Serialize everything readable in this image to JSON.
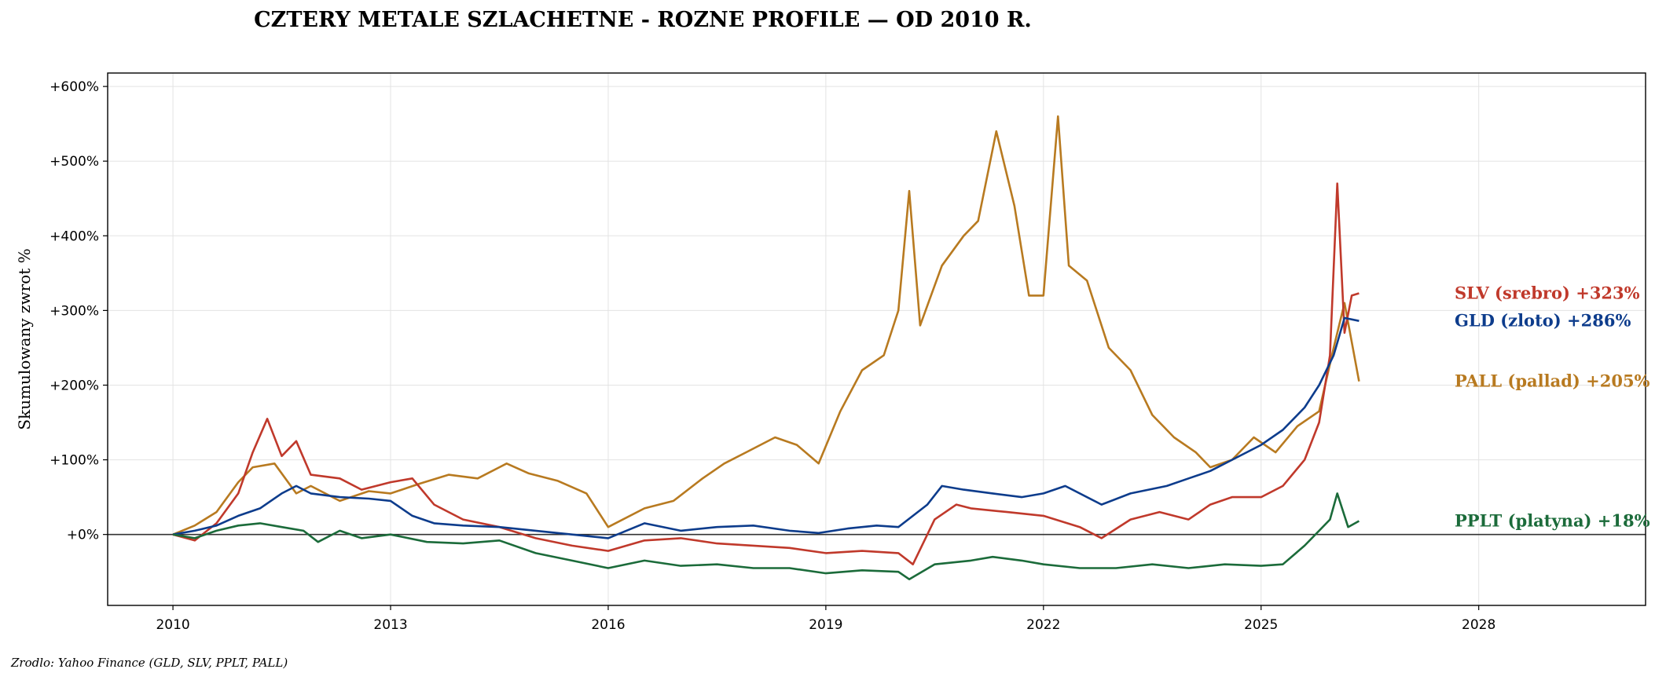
{
  "chart_data": {
    "type": "line",
    "title": "CZTERY METALE SZLACHETNE - ROZNE PROFILE — OD 2010 R.",
    "ylabel": "Skumulowany zwrot %",
    "xlabel": "",
    "source": "Zrodlo: Yahoo Finance (GLD, SLV, PPLT, PALL)",
    "xlim": [
      2009.1,
      2030.3
    ],
    "ylim": [
      -95,
      618
    ],
    "xticks": [
      2010,
      2013,
      2016,
      2019,
      2022,
      2025,
      2028
    ],
    "yticks": [
      0,
      100,
      200,
      300,
      400,
      500,
      600
    ],
    "ytick_labels": [
      "+0%",
      "+100%",
      "+200%",
      "+300%",
      "+400%",
      "+500%",
      "+600%"
    ],
    "xtick_labels": [
      "2010",
      "2013",
      "2016",
      "2019",
      "2022",
      "2025",
      "2028"
    ],
    "grid": true,
    "zero_line": true,
    "series": [
      {
        "key": "pall",
        "label": "PALL (pallad)  +205%",
        "color": "#b87a20",
        "x": [
          2010.0,
          2010.3,
          2010.6,
          2010.9,
          2011.1,
          2011.4,
          2011.7,
          2011.9,
          2012.3,
          2012.7,
          2013.0,
          2013.4,
          2013.8,
          2014.2,
          2014.6,
          2014.9,
          2015.3,
          2015.7,
          2016.0,
          2016.5,
          2016.9,
          2017.3,
          2017.6,
          2017.9,
          2018.3,
          2018.6,
          2018.9,
          2019.2,
          2019.5,
          2019.8,
          2020.0,
          2020.15,
          2020.3,
          2020.6,
          2020.9,
          2021.1,
          2021.35,
          2021.6,
          2021.8,
          2022.0,
          2022.2,
          2022.35,
          2022.6,
          2022.9,
          2023.2,
          2023.5,
          2023.8,
          2024.1,
          2024.3,
          2024.6,
          2024.9,
          2025.2,
          2025.5,
          2025.8,
          2026.0,
          2026.15,
          2026.35
        ],
        "y": [
          0,
          12,
          30,
          70,
          90,
          95,
          55,
          65,
          45,
          58,
          55,
          68,
          80,
          75,
          95,
          82,
          72,
          55,
          10,
          35,
          45,
          75,
          95,
          110,
          130,
          120,
          95,
          165,
          220,
          240,
          300,
          460,
          280,
          360,
          400,
          420,
          540,
          440,
          320,
          320,
          560,
          360,
          340,
          250,
          220,
          160,
          130,
          110,
          90,
          100,
          130,
          110,
          145,
          165,
          250,
          310,
          205
        ]
      },
      {
        "key": "slv",
        "label": "SLV (srebro)  +323%",
        "color": "#c0392b",
        "x": [
          2010.0,
          2010.3,
          2010.6,
          2010.9,
          2011.1,
          2011.3,
          2011.5,
          2011.7,
          2011.9,
          2012.3,
          2012.6,
          2013.0,
          2013.3,
          2013.6,
          2014.0,
          2014.5,
          2015.0,
          2015.5,
          2016.0,
          2016.5,
          2017.0,
          2017.5,
          2018.0,
          2018.5,
          2019.0,
          2019.5,
          2020.0,
          2020.2,
          2020.5,
          2020.8,
          2021.0,
          2021.5,
          2022.0,
          2022.5,
          2022.8,
          2023.2,
          2023.6,
          2024.0,
          2024.3,
          2024.6,
          2025.0,
          2025.3,
          2025.6,
          2025.8,
          2025.95,
          2026.05,
          2026.15,
          2026.25,
          2026.35
        ],
        "y": [
          0,
          -8,
          15,
          55,
          110,
          155,
          105,
          125,
          80,
          75,
          60,
          70,
          75,
          40,
          20,
          10,
          -5,
          -15,
          -22,
          -8,
          -5,
          -12,
          -15,
          -18,
          -25,
          -22,
          -25,
          -40,
          20,
          40,
          35,
          30,
          25,
          10,
          -5,
          20,
          30,
          20,
          40,
          50,
          50,
          65,
          100,
          150,
          240,
          470,
          270,
          320,
          323
        ]
      },
      {
        "key": "gld",
        "label": "GLD (zloto)  +286%",
        "color": "#0d3c8c",
        "x": [
          2010.0,
          2010.3,
          2010.6,
          2010.9,
          2011.2,
          2011.5,
          2011.7,
          2011.9,
          2012.3,
          2012.7,
          2013.0,
          2013.3,
          2013.6,
          2014.0,
          2014.5,
          2015.0,
          2015.5,
          2016.0,
          2016.5,
          2017.0,
          2017.5,
          2018.0,
          2018.5,
          2018.9,
          2019.3,
          2019.7,
          2020.0,
          2020.4,
          2020.6,
          2020.9,
          2021.3,
          2021.7,
          2022.0,
          2022.3,
          2022.8,
          2023.2,
          2023.7,
          2024.0,
          2024.3,
          2024.6,
          2025.0,
          2025.3,
          2025.6,
          2025.8,
          2026.0,
          2026.15,
          2026.35
        ],
        "y": [
          0,
          5,
          12,
          25,
          35,
          55,
          65,
          55,
          50,
          48,
          45,
          25,
          15,
          12,
          10,
          5,
          0,
          -5,
          15,
          5,
          10,
          12,
          5,
          2,
          8,
          12,
          10,
          40,
          65,
          60,
          55,
          50,
          55,
          65,
          40,
          55,
          65,
          75,
          85,
          100,
          120,
          140,
          170,
          200,
          240,
          290,
          286
        ]
      },
      {
        "key": "pplt",
        "label": "PPLT (platyna)  +18%",
        "color": "#1b6b3a",
        "x": [
          2010.0,
          2010.3,
          2010.6,
          2010.9,
          2011.2,
          2011.5,
          2011.8,
          2012.0,
          2012.3,
          2012.6,
          2013.0,
          2013.5,
          2014.0,
          2014.5,
          2015.0,
          2015.5,
          2016.0,
          2016.5,
          2017.0,
          2017.5,
          2018.0,
          2018.5,
          2019.0,
          2019.5,
          2020.0,
          2020.15,
          2020.5,
          2021.0,
          2021.3,
          2021.7,
          2022.0,
          2022.5,
          2023.0,
          2023.5,
          2024.0,
          2024.5,
          2025.0,
          2025.3,
          2025.6,
          2025.8,
          2025.95,
          2026.05,
          2026.2,
          2026.35
        ],
        "y": [
          0,
          -5,
          5,
          12,
          15,
          10,
          5,
          -10,
          5,
          -5,
          0,
          -10,
          -12,
          -8,
          -25,
          -35,
          -45,
          -35,
          -42,
          -40,
          -45,
          -45,
          -52,
          -48,
          -50,
          -60,
          -40,
          -35,
          -30,
          -35,
          -40,
          -45,
          -45,
          -40,
          -45,
          -40,
          -42,
          -40,
          -15,
          5,
          20,
          55,
          10,
          18
        ]
      }
    ]
  }
}
